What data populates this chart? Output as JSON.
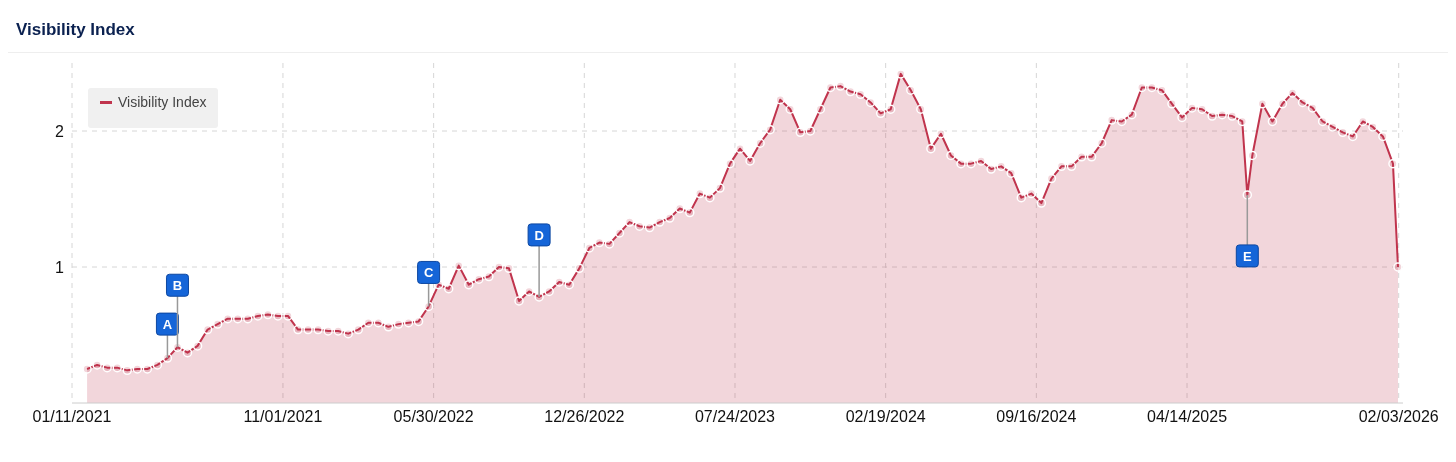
{
  "chart_data": {
    "type": "area",
    "title": "Visibility Index",
    "x": [
      "2021-02-01",
      "2021-02-15",
      "2021-03-01",
      "2021-03-15",
      "2021-03-29",
      "2021-04-12",
      "2021-04-26",
      "2021-05-10",
      "2021-05-24",
      "2021-06-07",
      "2021-06-21",
      "2021-07-05",
      "2021-07-19",
      "2021-08-02",
      "2021-08-16",
      "2021-08-30",
      "2021-09-13",
      "2021-09-27",
      "2021-10-11",
      "2021-10-25",
      "2021-11-08",
      "2021-11-22",
      "2021-12-06",
      "2021-12-20",
      "2022-01-03",
      "2022-01-17",
      "2022-01-31",
      "2022-02-14",
      "2022-02-28",
      "2022-03-14",
      "2022-03-28",
      "2022-04-11",
      "2022-04-25",
      "2022-05-09",
      "2022-05-23",
      "2022-06-06",
      "2022-06-20",
      "2022-07-04",
      "2022-07-18",
      "2022-08-01",
      "2022-08-15",
      "2022-08-29",
      "2022-09-12",
      "2022-09-26",
      "2022-10-10",
      "2022-10-24",
      "2022-11-07",
      "2022-11-21",
      "2022-12-05",
      "2022-12-19",
      "2023-01-02",
      "2023-01-16",
      "2023-01-30",
      "2023-02-13",
      "2023-02-27",
      "2023-03-13",
      "2023-03-27",
      "2023-04-10",
      "2023-04-24",
      "2023-05-08",
      "2023-05-22",
      "2023-06-05",
      "2023-06-19",
      "2023-07-03",
      "2023-07-17",
      "2023-07-31",
      "2023-08-14",
      "2023-08-28",
      "2023-09-11",
      "2023-09-25",
      "2023-10-09",
      "2023-10-23",
      "2023-11-06",
      "2023-11-20",
      "2023-12-04",
      "2023-12-18",
      "2024-01-01",
      "2024-01-15",
      "2024-01-29",
      "2024-02-12",
      "2024-02-26",
      "2024-03-11",
      "2024-03-25",
      "2024-04-08",
      "2024-04-22",
      "2024-05-06",
      "2024-05-20",
      "2024-06-03",
      "2024-06-17",
      "2024-07-01",
      "2024-07-15",
      "2024-07-29",
      "2024-08-12",
      "2024-08-26",
      "2024-09-09",
      "2024-09-23",
      "2024-10-07",
      "2024-10-21",
      "2024-11-04",
      "2024-11-18",
      "2024-12-02",
      "2024-12-16",
      "2024-12-30",
      "2025-01-13",
      "2025-01-27",
      "2025-02-10",
      "2025-02-24",
      "2025-03-10",
      "2025-03-24",
      "2025-04-07",
      "2025-04-21",
      "2025-05-05",
      "2025-05-19",
      "2025-06-02",
      "2025-06-16",
      "2025-06-30",
      "2025-07-07",
      "2025-07-14",
      "2025-07-28",
      "2025-08-11",
      "2025-08-25",
      "2025-09-08",
      "2025-09-22",
      "2025-10-06",
      "2025-10-20",
      "2025-11-03",
      "2025-11-17",
      "2025-12-01",
      "2025-12-15",
      "2025-12-29",
      "2026-01-12",
      "2026-01-26",
      "2026-02-02"
    ],
    "series": [
      {
        "name": "Visibility Index",
        "color": "#c0344d",
        "values": [
          0.25,
          0.28,
          0.26,
          0.26,
          0.24,
          0.25,
          0.25,
          0.28,
          0.33,
          0.41,
          0.37,
          0.42,
          0.54,
          0.58,
          0.62,
          0.62,
          0.62,
          0.64,
          0.65,
          0.64,
          0.64,
          0.54,
          0.54,
          0.54,
          0.53,
          0.53,
          0.51,
          0.54,
          0.59,
          0.59,
          0.56,
          0.58,
          0.59,
          0.6,
          0.71,
          0.87,
          0.84,
          1.01,
          0.87,
          0.91,
          0.93,
          1.0,
          0.99,
          0.75,
          0.82,
          0.78,
          0.82,
          0.89,
          0.87,
          0.99,
          1.14,
          1.18,
          1.17,
          1.25,
          1.33,
          1.3,
          1.29,
          1.33,
          1.36,
          1.43,
          1.4,
          1.54,
          1.51,
          1.58,
          1.76,
          1.87,
          1.78,
          1.91,
          2.01,
          2.23,
          2.16,
          1.99,
          2.0,
          2.16,
          2.32,
          2.33,
          2.29,
          2.27,
          2.21,
          2.13,
          2.16,
          2.42,
          2.3,
          2.16,
          1.87,
          1.98,
          1.82,
          1.76,
          1.76,
          1.78,
          1.72,
          1.74,
          1.69,
          1.51,
          1.54,
          1.47,
          1.65,
          1.74,
          1.74,
          1.81,
          1.81,
          1.91,
          2.08,
          2.07,
          2.12,
          2.32,
          2.32,
          2.3,
          2.2,
          2.1,
          2.17,
          2.16,
          2.11,
          2.12,
          2.11,
          2.07,
          1.53,
          1.82,
          2.2,
          2.07,
          2.2,
          2.28,
          2.21,
          2.17,
          2.07,
          2.03,
          1.99,
          1.96,
          2.07,
          2.03,
          1.96,
          1.76,
          1.0
        ]
      }
    ],
    "xlim": [
      "2021-01-11",
      "2026-02-09"
    ],
    "xticks": [
      {
        "value": "2021-01-11",
        "label": "01/11/2021"
      },
      {
        "value": "2021-11-01",
        "label": "11/01/2021"
      },
      {
        "value": "2022-05-30",
        "label": "05/30/2022"
      },
      {
        "value": "2022-12-26",
        "label": "12/26/2022"
      },
      {
        "value": "2023-07-24",
        "label": "07/24/2023"
      },
      {
        "value": "2024-02-19",
        "label": "02/19/2024"
      },
      {
        "value": "2024-09-16",
        "label": "09/16/2024"
      },
      {
        "value": "2025-04-14",
        "label": "04/14/2025"
      },
      {
        "value": "2026-02-03",
        "label": "02/03/2026"
      }
    ],
    "ylim": [
      0,
      2.5
    ],
    "yticks": [
      1,
      2
    ],
    "grid": true,
    "legend": "top left",
    "marker": "circle",
    "line_style": "solid",
    "annotations": [
      {
        "text": "A",
        "x": "2021-05-24",
        "y": 0.33
      },
      {
        "text": "B",
        "x": "2021-06-07",
        "y": 0.41
      },
      {
        "text": "C",
        "x": "2022-05-23",
        "y": 0.71
      },
      {
        "text": "D",
        "x": "2022-10-24",
        "y": 0.78
      },
      {
        "text": "E",
        "x": "2025-07-07",
        "y": 1.53
      }
    ]
  }
}
